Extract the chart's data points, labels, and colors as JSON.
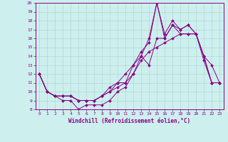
{
  "xlabel": "Windchill (Refroidissement éolien,°C)",
  "background_color": "#cdf0ee",
  "grid_color": "#b0d8d0",
  "line_color": "#880088",
  "xlim": [
    -0.5,
    23.5
  ],
  "ylim": [
    8,
    20
  ],
  "xticks": [
    0,
    1,
    2,
    3,
    4,
    5,
    6,
    7,
    8,
    9,
    10,
    11,
    12,
    13,
    14,
    15,
    16,
    17,
    18,
    19,
    20,
    21,
    22,
    23
  ],
  "yticks": [
    8,
    9,
    10,
    11,
    12,
    13,
    14,
    15,
    16,
    17,
    18,
    19,
    20
  ],
  "series": [
    {
      "x": [
        0,
        1,
        2,
        3,
        4,
        5,
        6,
        7,
        8,
        9,
        10,
        11,
        12,
        13,
        14,
        15,
        16,
        17,
        18,
        19,
        20,
        21,
        22,
        23
      ],
      "y": [
        12,
        10,
        9.5,
        9,
        9,
        8,
        8.5,
        8.5,
        8.5,
        9,
        10,
        10.5,
        12,
        14,
        13,
        16,
        16,
        17.5,
        16.5,
        16.5,
        16.5,
        13.5,
        11,
        11
      ]
    },
    {
      "x": [
        0,
        1,
        2,
        3,
        4,
        5,
        6,
        7,
        8,
        9,
        10,
        11,
        12,
        13,
        14,
        15,
        16,
        17,
        18,
        19,
        20,
        21,
        22,
        23
      ],
      "y": [
        12,
        10,
        9.5,
        9.5,
        9.5,
        9,
        9,
        9,
        9.5,
        10.5,
        11,
        12,
        13,
        14,
        16,
        20,
        16,
        17.5,
        17,
        17.5,
        16.5,
        14,
        13,
        11
      ]
    },
    {
      "x": [
        0,
        1,
        2,
        3,
        4,
        5,
        6,
        7,
        8,
        9,
        10,
        11,
        12,
        13,
        14,
        15,
        16,
        17,
        18,
        19,
        20,
        21,
        22,
        23
      ],
      "y": [
        12,
        10,
        9.5,
        9.5,
        9.5,
        9,
        9,
        9,
        9.5,
        10,
        11,
        11,
        13,
        14.5,
        15.5,
        20,
        16.5,
        18,
        17,
        17.5,
        16.5,
        14,
        11,
        11
      ]
    },
    {
      "x": [
        0,
        1,
        2,
        3,
        4,
        5,
        6,
        7,
        8,
        9,
        10,
        11,
        12,
        13,
        14,
        15,
        16,
        17,
        18,
        19,
        20,
        21,
        22,
        23
      ],
      "y": [
        12,
        10,
        9.5,
        9.5,
        9.5,
        9,
        9,
        9,
        9.5,
        10,
        10.5,
        11,
        12,
        13.5,
        14.5,
        15,
        15.5,
        16,
        16.5,
        16.5,
        16.5,
        14,
        11,
        11
      ]
    }
  ]
}
